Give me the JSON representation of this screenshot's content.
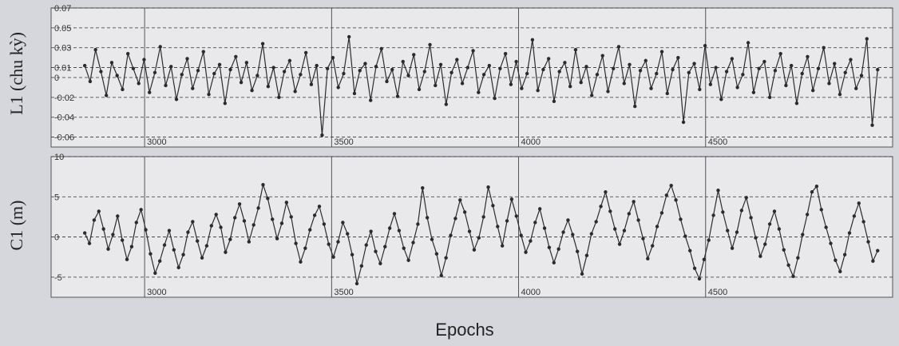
{
  "chart_data": [
    {
      "type": "line",
      "ylabel": "L1 (chu kỳ)",
      "xlabel": "",
      "xlim": [
        2750,
        5000
      ],
      "ylim": [
        -0.07,
        0.07
      ],
      "xticks": [
        3000,
        3500,
        4000,
        4500
      ],
      "yticks": [
        0.07,
        0.05,
        0.03,
        0.01,
        0,
        -0.02,
        -0.04,
        -0.06
      ],
      "ytick_labels": [
        "0.07",
        "0.05",
        "0.03",
        "0.01",
        "0",
        "-0.02",
        "-0.04",
        "-0.06"
      ],
      "grid": true,
      "x_start": 2840,
      "x_end": 4960,
      "series": [
        {
          "values": [
            0.012,
            -0.004,
            0.028,
            0.006,
            -0.018,
            0.015,
            0.002,
            -0.012,
            0.024,
            0.009,
            -0.006,
            0.018,
            -0.015,
            0.005,
            0.031,
            -0.008,
            0.011,
            -0.022,
            0.003,
            0.019,
            -0.011,
            0.007,
            0.026,
            -0.017,
            0.004,
            0.013,
            -0.026,
            0.008,
            0.021,
            -0.005,
            0.015,
            -0.013,
            0.002,
            0.034,
            -0.009,
            0.01,
            -0.02,
            0.006,
            0.017,
            -0.014,
            0.003,
            0.025,
            -0.007,
            0.012,
            -0.058,
            0.009,
            0.02,
            -0.01,
            0.004,
            0.041,
            -0.016,
            0.007,
            0.014,
            -0.023,
            0.011,
            0.029,
            -0.004,
            0.008,
            -0.019,
            0.016,
            0.002,
            0.023,
            -0.012,
            0.006,
            0.033,
            -0.008,
            0.013,
            -0.027,
            0.005,
            0.018,
            -0.006,
            0.01,
            0.027,
            -0.015,
            0.003,
            0.012,
            -0.021,
            0.009,
            0.024,
            -0.007,
            0.016,
            -0.011,
            0.004,
            0.038,
            -0.013,
            0.008,
            0.019,
            -0.024,
            0.006,
            0.015,
            -0.009,
            0.028,
            -0.005,
            0.011,
            -0.018,
            0.003,
            0.022,
            -0.014,
            0.009,
            0.031,
            -0.006,
            0.013,
            -0.029,
            0.007,
            0.017,
            -0.011,
            0.004,
            0.026,
            -0.016,
            0.008,
            0.02,
            -0.045,
            0.005,
            0.014,
            -0.012,
            0.032,
            -0.007,
            0.01,
            -0.022,
            0.006,
            0.019,
            -0.01,
            0.003,
            0.035,
            -0.015,
            0.009,
            0.016,
            -0.02,
            0.007,
            0.024,
            -0.008,
            0.012,
            -0.026,
            0.004,
            0.021,
            -0.013,
            0.009,
            0.03,
            -0.006,
            0.014,
            -0.017,
            0.005,
            0.018,
            -0.011,
            0.002,
            0.039,
            -0.048,
            0.008
          ]
        }
      ]
    },
    {
      "type": "line",
      "ylabel": "C1 (m)",
      "xlabel": "Epochs",
      "xlim": [
        2750,
        5000
      ],
      "ylim": [
        -7.5,
        10
      ],
      "xticks": [
        3000,
        3500,
        4000,
        4500
      ],
      "yticks": [
        10,
        5,
        0,
        -5
      ],
      "ytick_labels": [
        "10",
        "5",
        "0",
        "-5"
      ],
      "grid": true,
      "x_start": 2840,
      "x_end": 4960,
      "series": [
        {
          "values": [
            0.5,
            -0.8,
            2.1,
            3.2,
            1.0,
            -1.5,
            0.3,
            2.6,
            -0.4,
            -2.8,
            -1.2,
            1.8,
            3.4,
            0.9,
            -2.1,
            -4.5,
            -3.0,
            -1.0,
            0.8,
            -1.6,
            -3.8,
            -2.2,
            0.6,
            1.9,
            -0.5,
            -2.6,
            -1.1,
            1.4,
            2.8,
            1.2,
            -1.9,
            -0.3,
            2.4,
            4.1,
            2.0,
            -0.6,
            1.5,
            3.6,
            6.5,
            4.8,
            2.2,
            -0.2,
            1.7,
            4.3,
            2.5,
            -0.8,
            -3.1,
            -1.4,
            0.9,
            2.7,
            3.8,
            1.6,
            -0.9,
            -2.5,
            -0.6,
            1.8,
            0.4,
            -2.2,
            -5.8,
            -3.6,
            -1.0,
            0.7,
            -1.8,
            -3.3,
            -1.2,
            1.1,
            2.9,
            0.8,
            -1.4,
            -2.9,
            -0.7,
            1.6,
            6.1,
            2.4,
            -0.3,
            -2.1,
            -4.8,
            -2.6,
            0.2,
            2.3,
            4.6,
            3.1,
            0.7,
            -1.6,
            -0.1,
            2.5,
            6.2,
            3.9,
            1.3,
            -1.1,
            2.0,
            4.7,
            2.6,
            0.2,
            -1.9,
            -0.5,
            1.8,
            3.5,
            1.1,
            -1.3,
            -3.2,
            -1.5,
            0.6,
            2.1,
            0.3,
            -1.8,
            -4.6,
            -2.3,
            0.4,
            1.9,
            3.8,
            5.6,
            3.2,
            1.0,
            -0.9,
            0.8,
            2.9,
            4.4,
            2.1,
            -0.2,
            -2.7,
            -1.1,
            1.3,
            3.0,
            5.2,
            6.4,
            4.6,
            2.2,
            0.1,
            -1.7,
            -3.9,
            -5.2,
            -2.8,
            -0.4,
            2.7,
            5.8,
            3.1,
            0.8,
            -1.4,
            0.6,
            3.3,
            4.9,
            2.4,
            -0.1,
            -2.4,
            -0.9,
            1.6,
            3.2,
            1.0,
            -1.6,
            -3.5,
            -4.9,
            -2.6,
            0.3,
            2.8,
            5.6,
            6.3,
            3.4,
            1.2,
            -0.8,
            -2.9,
            -4.3,
            -2.2,
            0.5,
            2.6,
            4.2,
            1.9,
            -0.6,
            -3.0,
            -1.7
          ]
        }
      ]
    }
  ]
}
